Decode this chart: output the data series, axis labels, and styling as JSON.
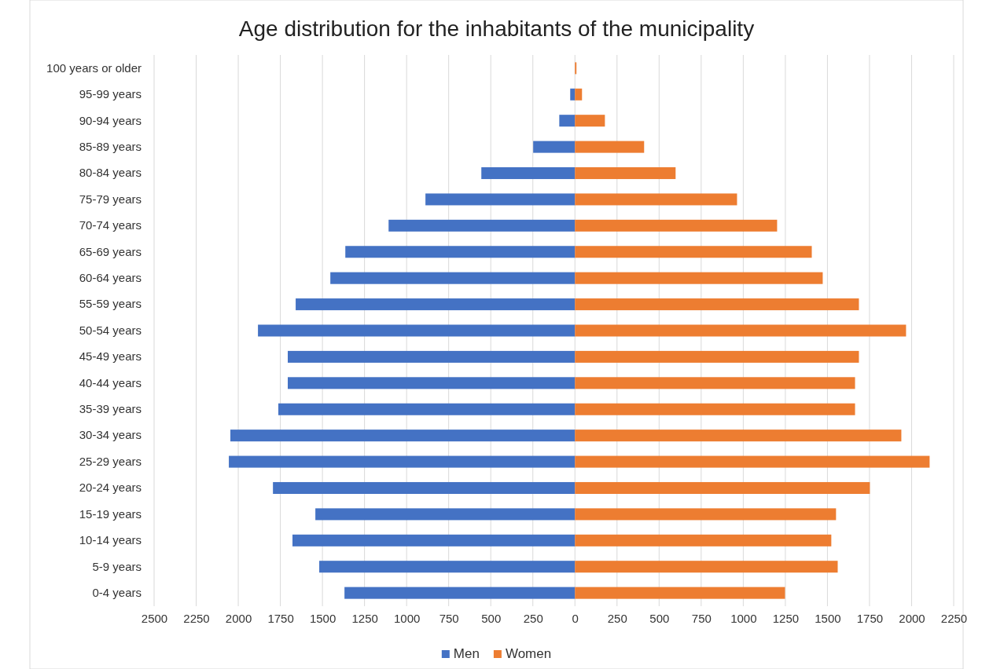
{
  "chart_data": {
    "type": "bar",
    "orientation": "horizontal",
    "stacked": true,
    "title": "Age distribution for the inhabitants of the municipality",
    "categories": [
      "100 years or older",
      "95-99 years",
      "90-94 years",
      "85-89 years",
      "80-84 years",
      "75-79 years",
      "70-74 years",
      "65-69 years",
      "60-64 years",
      "55-59 years",
      "50-54 years",
      "45-49 years",
      "40-44 years",
      "35-39 years",
      "30-34 years",
      "25-29 years",
      "20-24 years",
      "15-19 years",
      "10-14 years",
      "5-9 years",
      "0-4 years"
    ],
    "series": [
      {
        "name": "Men",
        "color": "#4472c4",
        "values": [
          0,
          -28,
          -93,
          -248,
          -556,
          -888,
          -1107,
          -1364,
          -1453,
          -1659,
          -1883,
          -1706,
          -1706,
          -1762,
          -2047,
          -2056,
          -1794,
          -1542,
          -1678,
          -1519,
          -1369
        ]
      },
      {
        "name": "Women",
        "color": "#ed7d31",
        "values": [
          9,
          42,
          178,
          411,
          598,
          963,
          1201,
          1407,
          1472,
          1687,
          1967,
          1687,
          1664,
          1664,
          1939,
          2107,
          1752,
          1551,
          1523,
          1561,
          1248
        ]
      }
    ],
    "xlim": [
      -2500,
      2250
    ],
    "xticks": [
      {
        "value": -2500,
        "label": "2500"
      },
      {
        "value": -2250,
        "label": "2250"
      },
      {
        "value": -2000,
        "label": "2000"
      },
      {
        "value": -1750,
        "label": "1750"
      },
      {
        "value": -1500,
        "label": "1500"
      },
      {
        "value": -1250,
        "label": "1250"
      },
      {
        "value": -1000,
        "label": "1000"
      },
      {
        "value": -750,
        "label": "750"
      },
      {
        "value": -500,
        "label": "500"
      },
      {
        "value": -250,
        "label": "250"
      },
      0,
      250,
      500,
      750,
      1000,
      1250,
      1500,
      1750,
      2000,
      2250
    ],
    "grid": "x",
    "legend": "bottom"
  }
}
